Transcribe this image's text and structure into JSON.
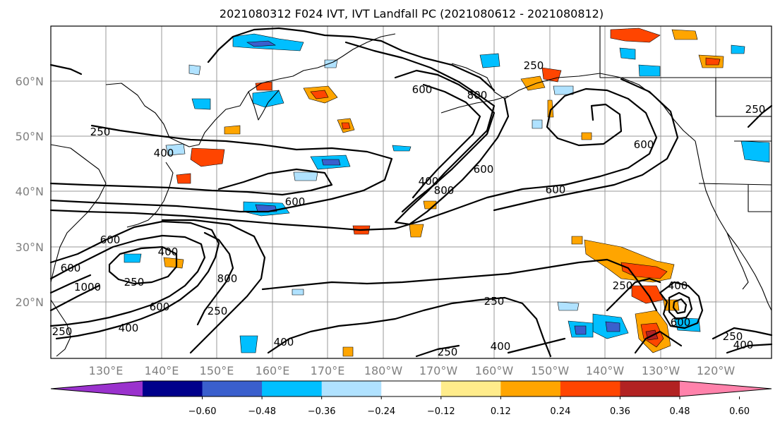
{
  "title": "2021080312 F024 IVT, IVT Landfall PC (2021080612 - 2021080812)",
  "lat_labels": [
    "60°N",
    "50°N",
    "40°N",
    "30°N",
    "20°N"
  ],
  "lon_labels": [
    "130°E",
    "140°E",
    "150°E",
    "160°E",
    "170°E",
    "180°W",
    "170°W",
    "160°W",
    "150°W",
    "140°W",
    "130°W",
    "120°W"
  ],
  "contour_labels": [
    "250",
    "600",
    "250",
    "400",
    "250",
    "600",
    "600",
    "400",
    "800",
    "600",
    "800",
    "600",
    "600",
    "600",
    "400",
    "250",
    "400",
    "250",
    "600",
    "250",
    "800",
    "1000",
    "250",
    "400",
    "250",
    "400",
    "250",
    "400",
    "600",
    "250",
    "400"
  ],
  "colorbar": {
    "tick_labels": [
      "−0.60",
      "−0.48",
      "−0.36",
      "−0.24",
      "−0.12",
      "0.12",
      "0.24",
      "0.36",
      "0.48",
      "0.60"
    ],
    "colors": [
      "#9a32cd",
      "#00008b",
      "#3a5fcd",
      "#00bfff",
      "#b0e2ff",
      "#ffffff",
      "#ffec8b",
      "#ffa500",
      "#ff4500",
      "#b22222",
      "#ff82ab"
    ]
  },
  "colors": {
    "strong_negative": "#3a5fcd",
    "negative": "#00bfff",
    "weak_negative": "#b0e2ff",
    "weak_positive": "#ffec8b",
    "positive": "#ffa500",
    "strong_positive": "#ff4500",
    "very_strong_positive": "#b22222"
  }
}
